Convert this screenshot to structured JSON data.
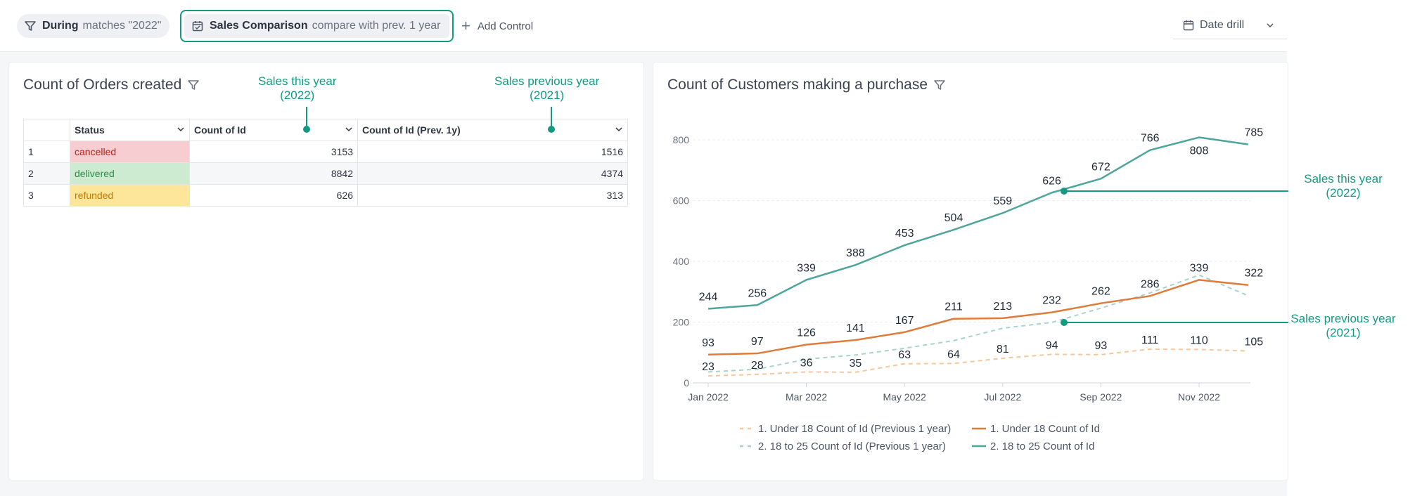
{
  "toolbar": {
    "filter_chip": {
      "bold": "During",
      "text": "matches \"2022\""
    },
    "compare_chip": {
      "bold": "Sales Comparison",
      "text": "compare with prev. 1 year"
    },
    "add_control_label": "Add Control",
    "date_drill_label": "Date drill"
  },
  "left_card": {
    "title": "Count of Orders created",
    "callout_this_year": {
      "line1": "Sales this year",
      "line2": "(2022)"
    },
    "callout_prev_year": {
      "line1": "Sales previous year",
      "line2": "(2021)"
    },
    "table": {
      "headers": [
        "",
        "Status",
        "Count of Id",
        "Count of Id (Prev. 1y)"
      ],
      "rows": [
        {
          "idx": "1",
          "status": "cancelled",
          "count": "3153",
          "prev": "1516"
        },
        {
          "idx": "2",
          "status": "delivered",
          "count": "8842",
          "prev": "4374"
        },
        {
          "idx": "3",
          "status": "refunded",
          "count": "626",
          "prev": "313"
        }
      ]
    }
  },
  "right_card": {
    "title": "Count of Customers making a purchase",
    "callout_this_year": {
      "line1": "Sales this year",
      "line2": "(2022)"
    },
    "callout_prev_year": {
      "line1": "Sales previous year",
      "line2": "(2021)"
    }
  },
  "colors": {
    "accent": "#139b82",
    "teal_line": "#4ea59a",
    "teal_dashed": "#a8d3cc",
    "orange_line": "#e07b39",
    "orange_dashed": "#f5c79a"
  },
  "chart_data": {
    "type": "line",
    "title": "Count of Customers making a purchase",
    "x": [
      "Jan 2022",
      "Feb 2022",
      "Mar 2022",
      "Apr 2022",
      "May 2022",
      "Jun 2022",
      "Jul 2022",
      "Aug 2022",
      "Sep 2022",
      "Oct 2022",
      "Nov 2022",
      "Dec 2022"
    ],
    "x_tick_labels": [
      "Jan 2022",
      "Mar 2022",
      "May 2022",
      "Jul 2022",
      "Sep 2022",
      "Nov 2022"
    ],
    "y_ticks": [
      0,
      200,
      400,
      600,
      800
    ],
    "ylim": [
      0,
      860
    ],
    "grid": true,
    "legend_position": "bottom",
    "series": [
      {
        "name": "1. Under 18 Count of Id (Previous 1 year)",
        "dashed": true,
        "color": "#f5c79a",
        "values": [
          23,
          28,
          36,
          35,
          63,
          64,
          81,
          94,
          93,
          111,
          110,
          105
        ],
        "labels": true
      },
      {
        "name": "1. Under 18 Count of Id",
        "dashed": false,
        "color": "#e07b39",
        "values": [
          93,
          97,
          126,
          141,
          167,
          211,
          213,
          232,
          262,
          286,
          339,
          322
        ],
        "labels": true
      },
      {
        "name": "2. 18 to 25 Count of Id (Previous 1 year)",
        "dashed": true,
        "color": "#a8d3cc",
        "values": [
          36,
          45,
          78,
          92,
          114,
          139,
          180,
          199,
          246,
          296,
          355,
          287
        ],
        "labels": false
      },
      {
        "name": "2. 18 to 25 Count of Id",
        "dashed": false,
        "color": "#4ea59a",
        "values": [
          244,
          256,
          339,
          388,
          453,
          504,
          559,
          626,
          672,
          766,
          808,
          785
        ],
        "labels": true
      }
    ]
  }
}
